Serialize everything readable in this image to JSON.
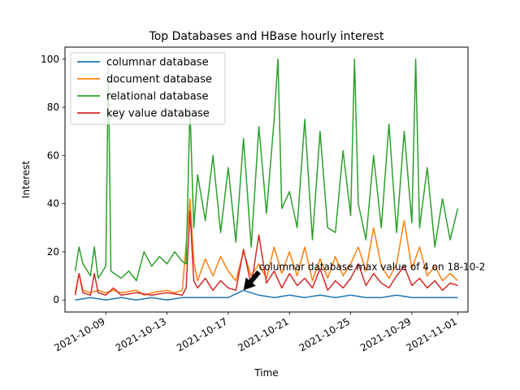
{
  "chart_data": {
    "type": "line",
    "title": "Top Databases and HBase hourly interest",
    "xlabel": "Time",
    "ylabel": "Interest",
    "xlim": [
      "2021-10-06T08:00",
      "2021-11-01T16:00"
    ],
    "ylim": [
      -5,
      105
    ],
    "xticks": [
      "2021-10-09",
      "2021-10-13",
      "2021-10-17",
      "2021-10-21",
      "2021-10-25",
      "2021-10-29",
      "2021-11-01"
    ],
    "yticks": [
      0,
      20,
      40,
      60,
      80,
      100
    ],
    "grid": false,
    "legend": "upper-left",
    "series": [
      {
        "name": "columnar database",
        "color": "#1f77b4",
        "points": [
          [
            "2021-10-07",
            0
          ],
          [
            "2021-10-08",
            1
          ],
          [
            "2021-10-09",
            0
          ],
          [
            "2021-10-10",
            1
          ],
          [
            "2021-10-11",
            0
          ],
          [
            "2021-10-12",
            1
          ],
          [
            "2021-10-13",
            0
          ],
          [
            "2021-10-14",
            1
          ],
          [
            "2021-10-15",
            1
          ],
          [
            "2021-10-16",
            1
          ],
          [
            "2021-10-17",
            1
          ],
          [
            "2021-10-18",
            4
          ],
          [
            "2021-10-19",
            2
          ],
          [
            "2021-10-20",
            1
          ],
          [
            "2021-10-21",
            2
          ],
          [
            "2021-10-22",
            1
          ],
          [
            "2021-10-23",
            2
          ],
          [
            "2021-10-24",
            1
          ],
          [
            "2021-10-25",
            2
          ],
          [
            "2021-10-26",
            1
          ],
          [
            "2021-10-27",
            1
          ],
          [
            "2021-10-28",
            2
          ],
          [
            "2021-10-29",
            1
          ],
          [
            "2021-10-30",
            1
          ],
          [
            "2021-10-31",
            1
          ],
          [
            "2021-11-01",
            1
          ]
        ]
      },
      {
        "name": "document database",
        "color": "#ff7f0e",
        "points": [
          [
            "2021-10-07",
            3
          ],
          [
            "2021-10-07T06:00",
            11
          ],
          [
            "2021-10-07T12:00",
            4
          ],
          [
            "2021-10-08",
            3
          ],
          [
            "2021-10-08T12:00",
            4
          ],
          [
            "2021-10-09",
            3
          ],
          [
            "2021-10-09T12:00",
            4
          ],
          [
            "2021-10-10",
            3
          ],
          [
            "2021-10-11",
            4
          ],
          [
            "2021-10-11T12:00",
            2
          ],
          [
            "2021-10-12",
            3
          ],
          [
            "2021-10-13",
            4
          ],
          [
            "2021-10-13T12:00",
            3
          ],
          [
            "2021-10-14",
            4
          ],
          [
            "2021-10-14T12:00",
            42
          ],
          [
            "2021-10-14T18:00",
            16
          ],
          [
            "2021-10-15",
            8
          ],
          [
            "2021-10-15T12:00",
            17
          ],
          [
            "2021-10-16",
            10
          ],
          [
            "2021-10-16T12:00",
            18
          ],
          [
            "2021-10-17",
            12
          ],
          [
            "2021-10-17T12:00",
            8
          ],
          [
            "2021-10-18",
            20
          ],
          [
            "2021-10-18T12:00",
            10
          ],
          [
            "2021-10-19",
            15
          ],
          [
            "2021-10-19T12:00",
            9
          ],
          [
            "2021-10-20",
            22
          ],
          [
            "2021-10-20T12:00",
            11
          ],
          [
            "2021-10-21",
            20
          ],
          [
            "2021-10-21T12:00",
            10
          ],
          [
            "2021-10-22",
            22
          ],
          [
            "2021-10-22T12:00",
            8
          ],
          [
            "2021-10-23",
            17
          ],
          [
            "2021-10-23T12:00",
            9
          ],
          [
            "2021-10-24",
            18
          ],
          [
            "2021-10-24T12:00",
            10
          ],
          [
            "2021-10-25",
            15
          ],
          [
            "2021-10-25T12:00",
            22
          ],
          [
            "2021-10-26",
            12
          ],
          [
            "2021-10-26T12:00",
            30
          ],
          [
            "2021-10-27",
            14
          ],
          [
            "2021-10-27T12:00",
            9
          ],
          [
            "2021-10-28",
            15
          ],
          [
            "2021-10-28T12:00",
            33
          ],
          [
            "2021-10-29",
            13
          ],
          [
            "2021-10-29T12:00",
            22
          ],
          [
            "2021-10-30",
            10
          ],
          [
            "2021-10-30T12:00",
            14
          ],
          [
            "2021-10-31",
            8
          ],
          [
            "2021-10-31T12:00",
            11
          ],
          [
            "2021-11-01",
            8
          ]
        ]
      },
      {
        "name": "relational database",
        "color": "#2ca02c",
        "points": [
          [
            "2021-10-07",
            12
          ],
          [
            "2021-10-07T06:00",
            22
          ],
          [
            "2021-10-07T12:00",
            15
          ],
          [
            "2021-10-08",
            10
          ],
          [
            "2021-10-08T06:00",
            22
          ],
          [
            "2021-10-08T12:00",
            9
          ],
          [
            "2021-10-09",
            14
          ],
          [
            "2021-10-09T04:00",
            97
          ],
          [
            "2021-10-09T08:00",
            12
          ],
          [
            "2021-10-10",
            9
          ],
          [
            "2021-10-10T12:00",
            12
          ],
          [
            "2021-10-11",
            8
          ],
          [
            "2021-10-11T12:00",
            20
          ],
          [
            "2021-10-12",
            14
          ],
          [
            "2021-10-12T12:00",
            18
          ],
          [
            "2021-10-13",
            15
          ],
          [
            "2021-10-13T12:00",
            20
          ],
          [
            "2021-10-14",
            16
          ],
          [
            "2021-10-14T06:00",
            15
          ],
          [
            "2021-10-14T12:00",
            80
          ],
          [
            "2021-10-14T18:00",
            30
          ],
          [
            "2021-10-15",
            52
          ],
          [
            "2021-10-15T12:00",
            33
          ],
          [
            "2021-10-16",
            60
          ],
          [
            "2021-10-16T12:00",
            28
          ],
          [
            "2021-10-17",
            55
          ],
          [
            "2021-10-17T12:00",
            24
          ],
          [
            "2021-10-18",
            67
          ],
          [
            "2021-10-18T12:00",
            22
          ],
          [
            "2021-10-19",
            72
          ],
          [
            "2021-10-19T12:00",
            36
          ],
          [
            "2021-10-20",
            75
          ],
          [
            "2021-10-20T06:00",
            100
          ],
          [
            "2021-10-20T12:00",
            38
          ],
          [
            "2021-10-21",
            45
          ],
          [
            "2021-10-21T12:00",
            30
          ],
          [
            "2021-10-22",
            75
          ],
          [
            "2021-10-22T12:00",
            25
          ],
          [
            "2021-10-23",
            70
          ],
          [
            "2021-10-23T12:00",
            30
          ],
          [
            "2021-10-24",
            28
          ],
          [
            "2021-10-24T12:00",
            62
          ],
          [
            "2021-10-25",
            35
          ],
          [
            "2021-10-25T06:00",
            100
          ],
          [
            "2021-10-25T12:00",
            40
          ],
          [
            "2021-10-26",
            25
          ],
          [
            "2021-10-26T12:00",
            60
          ],
          [
            "2021-10-27",
            30
          ],
          [
            "2021-10-27T12:00",
            73
          ],
          [
            "2021-10-28",
            28
          ],
          [
            "2021-10-28T12:00",
            70
          ],
          [
            "2021-10-29",
            32
          ],
          [
            "2021-10-29T06:00",
            100
          ],
          [
            "2021-10-29T12:00",
            30
          ],
          [
            "2021-10-30",
            55
          ],
          [
            "2021-10-30T12:00",
            22
          ],
          [
            "2021-10-31",
            42
          ],
          [
            "2021-10-31T12:00",
            25
          ],
          [
            "2021-11-01",
            38
          ]
        ]
      },
      {
        "name": "key value database",
        "color": "#d62728",
        "points": [
          [
            "2021-10-07",
            2
          ],
          [
            "2021-10-07T06:00",
            11
          ],
          [
            "2021-10-07T12:00",
            3
          ],
          [
            "2021-10-08",
            2
          ],
          [
            "2021-10-08T06:00",
            11
          ],
          [
            "2021-10-08T12:00",
            3
          ],
          [
            "2021-10-09",
            2
          ],
          [
            "2021-10-09T12:00",
            5
          ],
          [
            "2021-10-10",
            2
          ],
          [
            "2021-10-11",
            3
          ],
          [
            "2021-10-12",
            2
          ],
          [
            "2021-10-13",
            3
          ],
          [
            "2021-10-14",
            2
          ],
          [
            "2021-10-14T06:00",
            5
          ],
          [
            "2021-10-14T12:00",
            37
          ],
          [
            "2021-10-14T18:00",
            8
          ],
          [
            "2021-10-15",
            5
          ],
          [
            "2021-10-15T12:00",
            9
          ],
          [
            "2021-10-16",
            4
          ],
          [
            "2021-10-16T12:00",
            8
          ],
          [
            "2021-10-17",
            5
          ],
          [
            "2021-10-17T12:00",
            4
          ],
          [
            "2021-10-18",
            21
          ],
          [
            "2021-10-18T12:00",
            6
          ],
          [
            "2021-10-19",
            27
          ],
          [
            "2021-10-19T12:00",
            7
          ],
          [
            "2021-10-20",
            12
          ],
          [
            "2021-10-20T12:00",
            5
          ],
          [
            "2021-10-21",
            11
          ],
          [
            "2021-10-21T12:00",
            6
          ],
          [
            "2021-10-22",
            9
          ],
          [
            "2021-10-22T12:00",
            5
          ],
          [
            "2021-10-23",
            13
          ],
          [
            "2021-10-23T12:00",
            4
          ],
          [
            "2021-10-24",
            8
          ],
          [
            "2021-10-24T12:00",
            5
          ],
          [
            "2021-10-25",
            9
          ],
          [
            "2021-10-25T12:00",
            15
          ],
          [
            "2021-10-26",
            6
          ],
          [
            "2021-10-26T12:00",
            11
          ],
          [
            "2021-10-27",
            7
          ],
          [
            "2021-10-27T12:00",
            5
          ],
          [
            "2021-10-28",
            10
          ],
          [
            "2021-10-28T12:00",
            14
          ],
          [
            "2021-10-29",
            6
          ],
          [
            "2021-10-29T12:00",
            9
          ],
          [
            "2021-10-30",
            5
          ],
          [
            "2021-10-30T12:00",
            8
          ],
          [
            "2021-10-31",
            4
          ],
          [
            "2021-10-31T12:00",
            7
          ],
          [
            "2021-11-01",
            6
          ]
        ]
      }
    ],
    "annotation": {
      "text": "columnar database max value of 4 on 18-10-2",
      "point": [
        "2021-10-18",
        4
      ],
      "text_position": [
        "2021-10-19",
        15
      ]
    }
  }
}
